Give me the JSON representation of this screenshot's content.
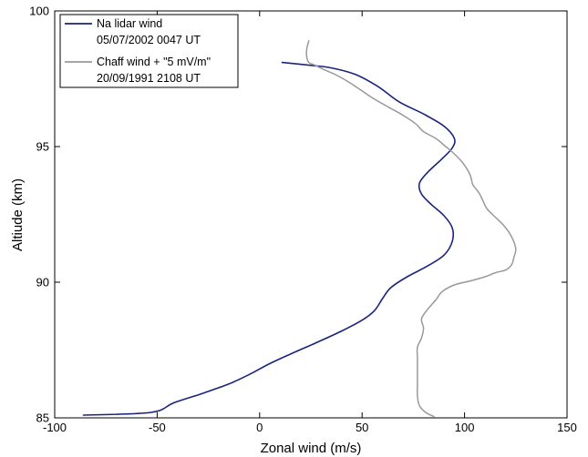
{
  "chart_data": {
    "type": "line",
    "xlabel": "Zonal wind  (m/s)",
    "ylabel": "Altiude  (km)",
    "xlim": [
      -100,
      150
    ],
    "ylim": [
      85,
      100
    ],
    "xticks": [
      -100,
      -50,
      0,
      50,
      100,
      150
    ],
    "yticks": [
      85,
      90,
      95,
      100
    ],
    "xtick_labels": [
      "-100",
      "-50",
      "0",
      "50",
      "100",
      "150"
    ],
    "ytick_labels": [
      "85",
      "90",
      "95",
      "100"
    ],
    "grid": false,
    "legend_position": "top-left",
    "series": [
      {
        "name": "Na lidar wind",
        "subtitle": "05/07/2002  0047 UT",
        "color": "#1a237e",
        "points": [
          [
            -86,
            85.1
          ],
          [
            -53,
            85.2
          ],
          [
            -42,
            85.55
          ],
          [
            -28,
            85.9
          ],
          [
            -15,
            86.25
          ],
          [
            -5,
            86.6
          ],
          [
            5,
            87.0
          ],
          [
            15,
            87.35
          ],
          [
            27,
            87.75
          ],
          [
            40,
            88.2
          ],
          [
            50,
            88.6
          ],
          [
            56,
            88.95
          ],
          [
            60,
            89.4
          ],
          [
            64,
            89.8
          ],
          [
            72,
            90.2
          ],
          [
            82,
            90.6
          ],
          [
            90,
            91.0
          ],
          [
            94,
            91.5
          ],
          [
            94,
            92.0
          ],
          [
            90,
            92.45
          ],
          [
            84,
            92.85
          ],
          [
            79,
            93.25
          ],
          [
            78,
            93.65
          ],
          [
            82,
            94.05
          ],
          [
            89,
            94.55
          ],
          [
            94,
            94.95
          ],
          [
            95,
            95.3
          ],
          [
            90,
            95.75
          ],
          [
            80,
            96.2
          ],
          [
            68,
            96.65
          ],
          [
            58,
            97.2
          ],
          [
            47,
            97.65
          ],
          [
            35,
            97.9
          ],
          [
            24,
            98.0
          ],
          [
            11,
            98.1
          ]
        ]
      },
      {
        "name": "Chaff wind + \"5 mV/m\"",
        "subtitle": "20/09/1991  2108 UT",
        "color": "#999999",
        "points": [
          [
            85,
            85.05
          ],
          [
            81,
            85.2
          ],
          [
            78,
            85.45
          ],
          [
            77,
            85.8
          ],
          [
            77,
            86.25
          ],
          [
            77,
            86.7
          ],
          [
            77,
            87.2
          ],
          [
            77,
            87.6
          ],
          [
            79,
            87.95
          ],
          [
            80,
            88.3
          ],
          [
            79,
            88.65
          ],
          [
            82,
            89.0
          ],
          [
            86,
            89.35
          ],
          [
            89,
            89.65
          ],
          [
            95,
            89.9
          ],
          [
            103,
            90.05
          ],
          [
            110,
            90.2
          ],
          [
            115,
            90.35
          ],
          [
            120,
            90.45
          ],
          [
            123,
            90.65
          ],
          [
            124,
            90.9
          ],
          [
            125,
            91.2
          ],
          [
            124,
            91.5
          ],
          [
            122,
            91.8
          ],
          [
            119,
            92.1
          ],
          [
            115,
            92.4
          ],
          [
            111,
            92.7
          ],
          [
            109,
            93.0
          ],
          [
            107,
            93.3
          ],
          [
            104,
            93.6
          ],
          [
            103,
            93.9
          ],
          [
            101,
            94.2
          ],
          [
            98,
            94.5
          ],
          [
            94,
            94.8
          ],
          [
            90,
            95.05
          ],
          [
            86,
            95.3
          ],
          [
            80,
            95.55
          ],
          [
            76,
            95.85
          ],
          [
            70,
            96.15
          ],
          [
            63,
            96.45
          ],
          [
            56,
            96.75
          ],
          [
            49,
            97.1
          ],
          [
            43,
            97.4
          ],
          [
            37,
            97.65
          ],
          [
            31,
            97.85
          ],
          [
            27,
            98.0
          ],
          [
            24,
            98.1
          ],
          [
            23,
            98.3
          ],
          [
            23,
            98.6
          ],
          [
            24,
            98.9
          ]
        ]
      }
    ]
  }
}
